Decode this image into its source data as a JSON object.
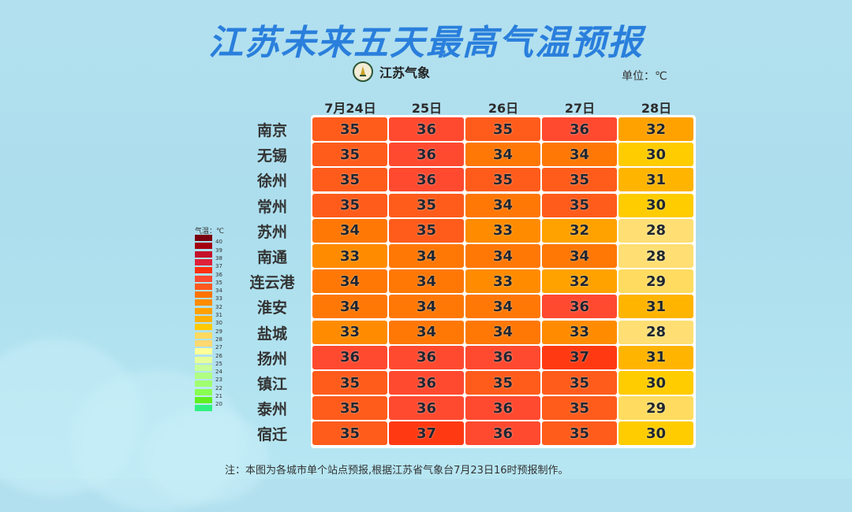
{
  "header": {
    "title": "江苏未来五天最高气温预报",
    "logo_text": "江苏气象",
    "unit_label": "单位：℃"
  },
  "legend": {
    "title": "气温：℃",
    "items": [
      {
        "value": "",
        "color": "#7a0010"
      },
      {
        "value": "40",
        "color": "#a3000f"
      },
      {
        "value": "39",
        "color": "#c6102a"
      },
      {
        "value": "38",
        "color": "#e0203a"
      },
      {
        "value": "37",
        "color": "#ff3010"
      },
      {
        "value": "36",
        "color": "#ff4a30"
      },
      {
        "value": "35",
        "color": "#ff5a1e"
      },
      {
        "value": "34",
        "color": "#ff7400"
      },
      {
        "value": "33",
        "color": "#ff8c00"
      },
      {
        "value": "32",
        "color": "#ffa000"
      },
      {
        "value": "31",
        "color": "#ffb000"
      },
      {
        "value": "30",
        "color": "#ffca00"
      },
      {
        "value": "29",
        "color": "#ffda60"
      },
      {
        "value": "28",
        "color": "#ffd870"
      },
      {
        "value": "27",
        "color": "#ffff99"
      },
      {
        "value": "26",
        "color": "#e6ff99"
      },
      {
        "value": "25",
        "color": "#c8ff99"
      },
      {
        "value": "24",
        "color": "#b0ff80"
      },
      {
        "value": "23",
        "color": "#a0ff70"
      },
      {
        "value": "22",
        "color": "#88ff50"
      },
      {
        "value": "21",
        "color": "#60f020"
      },
      {
        "value": "20",
        "color": "#30f080"
      }
    ]
  },
  "note": "注：本图为各城市单个站点预报,根据江苏省气象台7月23日16时预报制作。",
  "chart_data": {
    "type": "table",
    "title": "江苏未来五天最高气温预报",
    "unit": "℃",
    "columns": [
      "7月24日",
      "25日",
      "26日",
      "27日",
      "28日"
    ],
    "rows": [
      "南京",
      "无锡",
      "徐州",
      "常州",
      "苏州",
      "南通",
      "连云港",
      "淮安",
      "盐城",
      "扬州",
      "镇江",
      "泰州",
      "宿迁"
    ],
    "values": [
      [
        35,
        36,
        35,
        36,
        32
      ],
      [
        35,
        36,
        34,
        34,
        30
      ],
      [
        35,
        36,
        35,
        35,
        31
      ],
      [
        35,
        35,
        34,
        35,
        30
      ],
      [
        34,
        35,
        33,
        32,
        28
      ],
      [
        33,
        34,
        34,
        34,
        28
      ],
      [
        34,
        34,
        33,
        32,
        29
      ],
      [
        34,
        34,
        34,
        36,
        31
      ],
      [
        33,
        34,
        34,
        33,
        28
      ],
      [
        36,
        36,
        36,
        37,
        31
      ],
      [
        35,
        36,
        35,
        35,
        30
      ],
      [
        35,
        36,
        36,
        35,
        29
      ],
      [
        35,
        37,
        36,
        35,
        30
      ]
    ],
    "color_scale": {
      "37": "#ff3a12",
      "36": "#ff4a30",
      "35": "#ff5c1c",
      "34": "#ff7806",
      "33": "#ff8c00",
      "32": "#ffa200",
      "31": "#ffb400",
      "30": "#ffcc00",
      "29": "#ffdc60",
      "28": "#ffdf74"
    },
    "legend_range": [
      20,
      40
    ]
  }
}
